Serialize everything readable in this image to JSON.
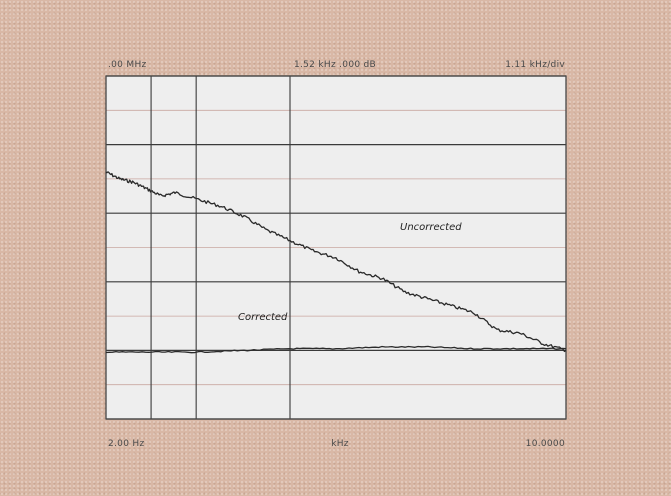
{
  "chart_data": {
    "type": "line",
    "header": {
      "left": ".00 MHz",
      "center": "1.52 kHz  .000 dB",
      "right": "1.11 kHz/div"
    },
    "footer": {
      "left": "2.00 Hz",
      "center": "kHz",
      "right": "10.0000"
    },
    "xlim": [
      0,
      10
    ],
    "ylim": [
      0,
      10
    ],
    "grid": true,
    "series": [
      {
        "name": "Uncorrected",
        "color": "#2a2a2a",
        "x": [
          0,
          0.3,
          0.6,
          0.9,
          1.2,
          1.5,
          2.0,
          2.5,
          3.0,
          3.5,
          4.0,
          4.5,
          5.0,
          5.5,
          6.0,
          6.5,
          7.0,
          7.5,
          8.0,
          8.5,
          9.0,
          9.5,
          10.0
        ],
        "y": [
          7.2,
          7.0,
          6.9,
          6.7,
          6.5,
          6.6,
          6.4,
          6.2,
          5.9,
          5.5,
          5.2,
          4.9,
          4.7,
          4.3,
          4.1,
          3.7,
          3.5,
          3.3,
          3.1,
          2.6,
          2.5,
          2.2,
          2.0
        ]
      },
      {
        "name": "Corrected",
        "color": "#2a2a2a",
        "x": [
          0,
          1,
          2,
          3,
          4,
          5,
          6,
          7,
          8,
          9,
          10
        ],
        "y": [
          1.95,
          1.95,
          1.95,
          2.0,
          2.05,
          2.05,
          2.1,
          2.1,
          2.05,
          2.05,
          2.05
        ]
      }
    ],
    "annotations": [
      {
        "text": "Uncorrected"
      },
      {
        "text": "Corrected"
      }
    ]
  }
}
